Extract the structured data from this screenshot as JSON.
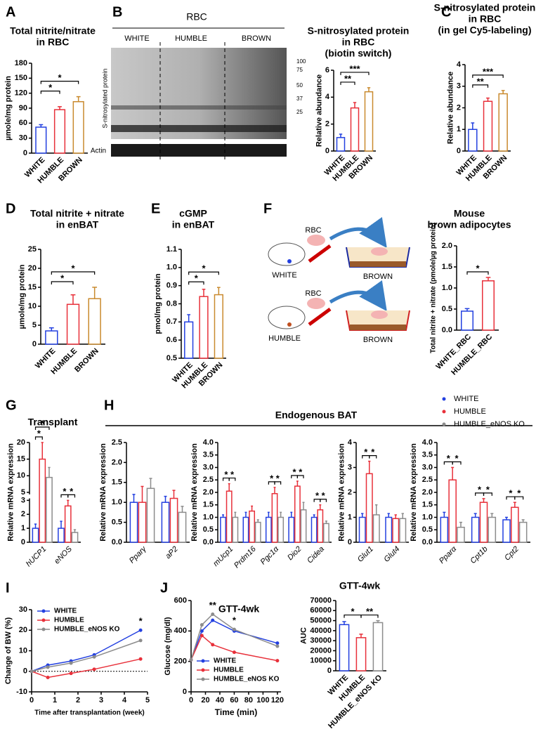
{
  "chart_data": [
    {
      "type": "bar",
      "panel": "A",
      "title": [
        "Total nitrite/nitrate",
        "in RBC"
      ],
      "ylabel": "µmole/mg protein",
      "categories": [
        "WHITE",
        "HUMBLE",
        "BROWN"
      ],
      "values": [
        52,
        87,
        103
      ],
      "errors": [
        5,
        6,
        10
      ],
      "colors": [
        "#2340e0",
        "#e8303a",
        "#c98a2e"
      ],
      "ylim": [
        0,
        180
      ],
      "yticks": [
        0,
        30,
        60,
        90,
        120,
        150,
        180
      ],
      "annotations": [
        {
          "from": 0,
          "to": 1,
          "text": "*"
        },
        {
          "from": 0,
          "to": 2,
          "text": "*"
        }
      ]
    },
    {
      "type": "bar",
      "panel": "B",
      "title": [
        "S-nitrosylated protein",
        "in RBC",
        "(biotin switch)"
      ],
      "ylabel": "Relative abundance",
      "categories": [
        "WHITE",
        "HUMBLE",
        "BROWN"
      ],
      "values": [
        1,
        3.2,
        4.4
      ],
      "errors": [
        0.25,
        0.4,
        0.3
      ],
      "colors": [
        "#2340e0",
        "#e8303a",
        "#c98a2e"
      ],
      "ylim": [
        0,
        6
      ],
      "yticks": [
        0,
        2,
        4,
        6
      ],
      "annotations": [
        {
          "from": 0,
          "to": 1,
          "text": "**"
        },
        {
          "from": 0,
          "to": 2,
          "text": "***"
        }
      ]
    },
    {
      "type": "bar",
      "panel": "C",
      "title": [
        "S-nitrosylated protein",
        "in RBC",
        "(in gel Cy5-labeling)"
      ],
      "ylabel": "Relative abundance",
      "categories": [
        "WHITE",
        "HUMBLE",
        "BROWN"
      ],
      "values": [
        1,
        2.3,
        2.65
      ],
      "errors": [
        0.3,
        0.15,
        0.15
      ],
      "colors": [
        "#2340e0",
        "#e8303a",
        "#c98a2e"
      ],
      "ylim": [
        0,
        4
      ],
      "yticks": [
        0,
        1,
        2,
        3,
        4
      ],
      "annotations": [
        {
          "from": 0,
          "to": 1,
          "text": "**"
        },
        {
          "from": 0,
          "to": 2,
          "text": "***"
        }
      ]
    },
    {
      "type": "bar",
      "panel": "D",
      "title": [
        "Total nitrite + nitrate",
        "in enBAT"
      ],
      "ylabel": "µmole/mg protein",
      "categories": [
        "WHITE",
        "HUMBLE",
        "BROWN"
      ],
      "values": [
        3.5,
        10.5,
        12
      ],
      "errors": [
        0.8,
        2.5,
        3
      ],
      "colors": [
        "#2340e0",
        "#e8303a",
        "#c98a2e"
      ],
      "ylim": [
        0,
        25
      ],
      "yticks": [
        0,
        5,
        10,
        15,
        20,
        25
      ],
      "annotations": [
        {
          "from": 0,
          "to": 1,
          "text": "*"
        },
        {
          "from": 0,
          "to": 2,
          "text": "*"
        }
      ]
    },
    {
      "type": "bar",
      "panel": "E",
      "title": [
        "cGMP",
        "in enBAT"
      ],
      "ylabel": "pmol/mg protein",
      "categories": [
        "WHITE",
        "HUMBLE",
        "BROWN"
      ],
      "values": [
        0.7,
        0.84,
        0.85
      ],
      "errors": [
        0.04,
        0.04,
        0.04
      ],
      "colors": [
        "#2340e0",
        "#e8303a",
        "#c98a2e"
      ],
      "ylim": [
        0.5,
        1.1
      ],
      "yticks": [
        0.5,
        0.6,
        0.7,
        0.8,
        0.9,
        {
          "value": 1,
          "label": "1.0"
        },
        1.1
      ],
      "annotations": [
        {
          "from": 0,
          "to": 1,
          "text": "*"
        },
        {
          "from": 0,
          "to": 2,
          "text": "*"
        }
      ]
    },
    {
      "type": "bar",
      "panel": "F",
      "title": [
        "Mouse",
        "brown adipocytes"
      ],
      "ylabel": "Total nitrite + nitrate (pmole/µg protein)",
      "categories": [
        "WHITE_RBC",
        "HUMBLE_RBC"
      ],
      "values": [
        0.45,
        1.17
      ],
      "errors": [
        0.06,
        0.08
      ],
      "colors": [
        "#2340e0",
        "#e8303a"
      ],
      "ylim": [
        0,
        2
      ],
      "yticks": [
        {
          "value": 0,
          "label": "0.0"
        },
        0.5,
        {
          "value": 1,
          "label": "1.0"
        },
        1.5,
        {
          "value": 2,
          "label": "2.0"
        }
      ],
      "annotations": [
        {
          "from": 0,
          "to": 1,
          "text": "*"
        }
      ]
    },
    {
      "type": "bar",
      "panel": "G",
      "title": [
        "Transplant"
      ],
      "ylabel": "Relative mRNA expression",
      "italic": true,
      "categories": [
        "hUCP1",
        "eNOS"
      ],
      "series": [
        {
          "name": "WHITE",
          "color": "#2340e0",
          "values": [
            1,
            1
          ],
          "errors": [
            0.3,
            0.5
          ]
        },
        {
          "name": "HUMBLE",
          "color": "#e8303a",
          "values": [
            15,
            2.6
          ],
          "errors": [
            5,
            0.4
          ]
        },
        {
          "name": "HUMBLE_eNOS KO",
          "color": "#8c8c8c",
          "values": [
            9.5,
            0.7
          ],
          "errors": [
            3,
            0.2
          ]
        }
      ],
      "ylim": [
        0,
        20
      ],
      "ybreak": [
        3,
        5
      ],
      "yticks": [
        0,
        1,
        2,
        3,
        5,
        10,
        15,
        20
      ],
      "annotations": [
        {
          "category": 0,
          "from": 0,
          "to": 1,
          "text": "*"
        },
        {
          "category": 0,
          "from": 0,
          "to": 2,
          "text": "*"
        },
        {
          "category": 1,
          "from": 0,
          "to": 1,
          "text": "*"
        },
        {
          "category": 1,
          "from": 1,
          "to": 2,
          "text": "*"
        }
      ]
    },
    {
      "type": "bar",
      "panel": "H",
      "heading": "Endogenous BAT",
      "ylabel": "Relative mRNA expression",
      "italic": true,
      "categories": [
        "Pparγ",
        "aP2"
      ],
      "series": [
        {
          "name": "WHITE",
          "color": "#2340e0",
          "values": [
            1,
            1
          ],
          "errors": [
            0.2,
            0.15
          ]
        },
        {
          "name": "HUMBLE",
          "color": "#e8303a",
          "values": [
            1,
            1.1
          ],
          "errors": [
            0.4,
            0.2
          ]
        },
        {
          "name": "HUMBLE_eNOS KO",
          "color": "#8c8c8c",
          "values": [
            1.35,
            0.75
          ],
          "errors": [
            0.25,
            0.15
          ]
        }
      ],
      "ylim": [
        0,
        2.5
      ],
      "yticks": [
        {
          "value": 0,
          "label": "0.0"
        },
        0.5,
        {
          "value": 1,
          "label": "1.0"
        },
        1.5,
        {
          "value": 2,
          "label": "2.0"
        },
        2.5
      ],
      "annotations": []
    },
    {
      "type": "bar",
      "ylabel": "Relative mRNA expression",
      "italic": true,
      "categories": [
        "mUcp1",
        "Prdm16",
        "Pgc1α",
        "Dio2",
        "Cidea"
      ],
      "series": [
        {
          "name": "WHITE",
          "color": "#2340e0",
          "values": [
            1,
            1,
            1,
            1,
            1
          ],
          "errors": [
            0.1,
            0.2,
            0.2,
            0.2,
            0.1
          ]
        },
        {
          "name": "HUMBLE",
          "color": "#e8303a",
          "values": [
            2.05,
            1.25,
            1.95,
            2.25,
            1.3
          ],
          "errors": [
            0.3,
            0.2,
            0.25,
            0.2,
            0.2
          ]
        },
        {
          "name": "HUMBLE_eNOS KO",
          "color": "#8c8c8c",
          "values": [
            1,
            0.8,
            1,
            1.3,
            0.75
          ],
          "errors": [
            0.2,
            0.1,
            0.2,
            0.3,
            0.1
          ]
        }
      ],
      "ylim": [
        0,
        4
      ],
      "yticks": [
        {
          "value": 0,
          "label": "0.0"
        },
        0.5,
        {
          "value": 1,
          "label": "1.0"
        },
        1.5,
        {
          "value": 2,
          "label": "2.0"
        },
        2.5,
        {
          "value": 3,
          "label": "3.0"
        },
        3.5,
        {
          "value": 4,
          "label": "4.0"
        }
      ],
      "annotations": [
        {
          "category": 0,
          "from": 0,
          "to": 1,
          "text": "*"
        },
        {
          "category": 0,
          "from": 1,
          "to": 2,
          "text": "*"
        },
        {
          "category": 2,
          "from": 0,
          "to": 1,
          "text": "*"
        },
        {
          "category": 2,
          "from": 1,
          "to": 2,
          "text": "*"
        },
        {
          "category": 3,
          "from": 0,
          "to": 1,
          "text": "*"
        },
        {
          "category": 3,
          "from": 1,
          "to": 2,
          "text": "*"
        },
        {
          "category": 4,
          "from": 0,
          "to": 1,
          "text": "*"
        },
        {
          "category": 4,
          "from": 1,
          "to": 2,
          "text": "*"
        }
      ]
    },
    {
      "type": "bar",
      "ylabel": "Relative mRNA expression",
      "italic": true,
      "categories": [
        "Glut1",
        "Glut4"
      ],
      "series": [
        {
          "name": "WHITE",
          "color": "#2340e0",
          "values": [
            1,
            1
          ],
          "errors": [
            0.15,
            0.15
          ]
        },
        {
          "name": "HUMBLE",
          "color": "#e8303a",
          "values": [
            2.75,
            0.95
          ],
          "errors": [
            0.5,
            0.15
          ]
        },
        {
          "name": "HUMBLE_eNOS KO",
          "color": "#8c8c8c",
          "values": [
            1.1,
            0.95
          ],
          "errors": [
            0.4,
            0.2
          ]
        }
      ],
      "ylim": [
        0,
        4
      ],
      "yticks": [
        0,
        1,
        2,
        3,
        4
      ],
      "annotations": [
        {
          "category": 0,
          "from": 0,
          "to": 1,
          "text": "*"
        },
        {
          "category": 0,
          "from": 1,
          "to": 2,
          "text": "*"
        }
      ]
    },
    {
      "type": "bar",
      "ylabel": "Relative mRNA expression",
      "italic": true,
      "legend": "top-right",
      "categories": [
        "Pparα",
        "Cpt1b",
        "Cpt2"
      ],
      "series": [
        {
          "name": "WHITE",
          "color": "#2340e0",
          "values": [
            1,
            1,
            0.9
          ],
          "errors": [
            0.2,
            0.15,
            0.1
          ]
        },
        {
          "name": "HUMBLE",
          "color": "#e8303a",
          "values": [
            2.5,
            1.6,
            1.4
          ],
          "errors": [
            0.5,
            0.15,
            0.2
          ]
        },
        {
          "name": "HUMBLE_eNOS KO",
          "color": "#8c8c8c",
          "values": [
            0.6,
            1,
            0.8
          ],
          "errors": [
            0.2,
            0.15,
            0.1
          ]
        }
      ],
      "ylim": [
        0,
        4
      ],
      "yticks": [
        {
          "value": 0,
          "label": "0.0"
        },
        0.5,
        {
          "value": 1,
          "label": "1.0"
        },
        1.5,
        {
          "value": 2,
          "label": "2.0"
        },
        2.5,
        {
          "value": 3,
          "label": "3.0"
        },
        3.5,
        {
          "value": 4,
          "label": "4.0"
        }
      ],
      "annotations": [
        {
          "category": 0,
          "from": 0,
          "to": 1,
          "text": "*"
        },
        {
          "category": 0,
          "from": 1,
          "to": 2,
          "text": "*"
        },
        {
          "category": 1,
          "from": 0,
          "to": 1,
          "text": "*"
        },
        {
          "category": 1,
          "from": 1,
          "to": 2,
          "text": "*"
        },
        {
          "category": 2,
          "from": 0,
          "to": 1,
          "text": "*"
        },
        {
          "category": 2,
          "from": 1,
          "to": 2,
          "text": "*"
        }
      ]
    },
    {
      "type": "line",
      "panel": "I",
      "ylabel": "Change of BW (%)",
      "xlabel": "Time after transplantation (week)",
      "legend": "top-left",
      "zero_line": true,
      "x": [
        0,
        0.7,
        1.7,
        2.7,
        4.7
      ],
      "series": [
        {
          "name": "WHITE",
          "color": "#2340e0",
          "values": [
            0,
            3,
            5,
            8,
            20
          ]
        },
        {
          "name": "HUMBLE",
          "color": "#e8303a",
          "values": [
            0,
            -3,
            -1,
            1,
            6
          ]
        },
        {
          "name": "HUMBLE_eNOS KO",
          "color": "#8c8c8c",
          "values": [
            0,
            2,
            4,
            7,
            15
          ]
        }
      ],
      "xlim": [
        0,
        5
      ],
      "xticks": [
        0,
        1,
        2,
        3,
        4,
        5
      ],
      "ylim": [
        -10,
        30
      ],
      "yticks": [
        -10,
        0,
        10,
        20,
        30
      ],
      "annotations": [
        {
          "x": 4.7,
          "text": "*"
        }
      ]
    },
    {
      "type": "line",
      "panel": "J",
      "title": [
        "GTT-4wk"
      ],
      "ylabel": "Glucose (mg/dl)",
      "xlabel": "Time (min)",
      "legend": "bottom-left",
      "x": [
        0,
        15,
        30,
        60,
        120
      ],
      "series": [
        {
          "name": "WHITE",
          "color": "#2340e0",
          "values": [
            210,
            400,
            470,
            400,
            320
          ]
        },
        {
          "name": "HUMBLE",
          "color": "#e8303a",
          "values": [
            210,
            370,
            310,
            260,
            205
          ]
        },
        {
          "name": "HUMBLE_eNOS KO",
          "color": "#8c8c8c",
          "values": [
            210,
            440,
            510,
            410,
            300
          ]
        }
      ],
      "xlim": [
        0,
        125
      ],
      "xticks": [
        0,
        20,
        40,
        60,
        80,
        100,
        120
      ],
      "ylim": [
        0,
        600
      ],
      "yticks": [
        0,
        200,
        400,
        600
      ],
      "annotations": [
        {
          "x": 30,
          "text": "**"
        },
        {
          "x": 60,
          "text": "*"
        }
      ]
    },
    {
      "type": "bar",
      "title": [
        "GTT-4wk"
      ],
      "ylabel": "AUC",
      "categories": [
        "WHITE",
        "HUMBLE",
        "HUMBLE_eNOS KO"
      ],
      "values": [
        46000,
        33000,
        48000
      ],
      "errors": [
        3000,
        3500,
        2000
      ],
      "colors": [
        "#2340e0",
        "#e8303a",
        "#8c8c8c"
      ],
      "ylim": [
        0,
        70000
      ],
      "yticks": [
        0,
        10000,
        20000,
        30000,
        40000,
        50000,
        60000,
        70000
      ],
      "annotations": [
        {
          "from": 0,
          "to": 1,
          "text": "*"
        },
        {
          "from": 1,
          "to": 2,
          "text": "**"
        }
      ]
    }
  ],
  "blot": {
    "title": "RBC",
    "lanes": [
      "WHITE",
      "HUMBLE",
      "BROWN"
    ],
    "ylabel": "S-nitrosylated protein",
    "loading": "Actin",
    "markers": [
      100,
      75,
      50,
      37,
      25
    ]
  },
  "diagram": {
    "labels": [
      "RBC",
      "WHITE",
      "BROWN",
      "RBC",
      "HUMBLE",
      "BROWN"
    ]
  }
}
